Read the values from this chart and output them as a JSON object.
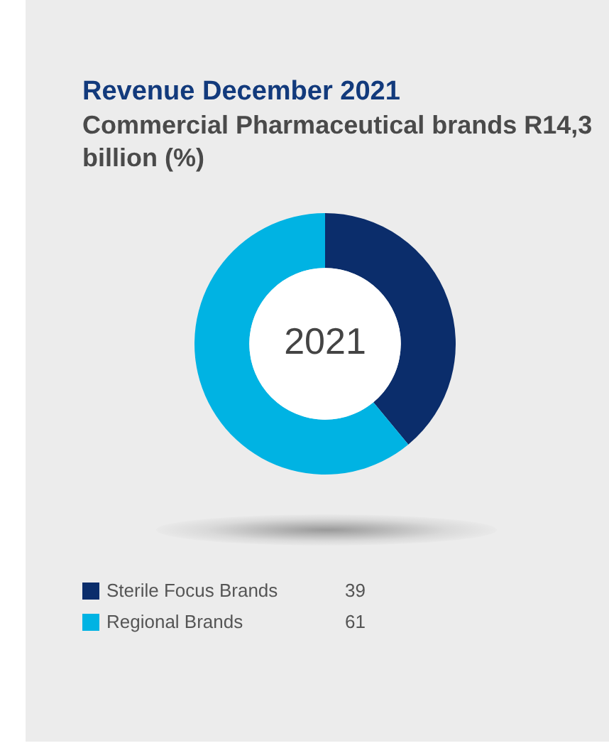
{
  "chart_data": {
    "type": "donut",
    "title": "Revenue December 2021",
    "subtitle": "Commercial Pharmaceutical brands R14,3 billion (%)",
    "categories": [
      "Sterile Focus Brands",
      "Regional Brands"
    ],
    "values": [
      39,
      61
    ],
    "colors": [
      "#0b2d6b",
      "#00b3e3"
    ],
    "annotations": [
      "2021"
    ],
    "data_labels": true,
    "legend": "bottom"
  }
}
